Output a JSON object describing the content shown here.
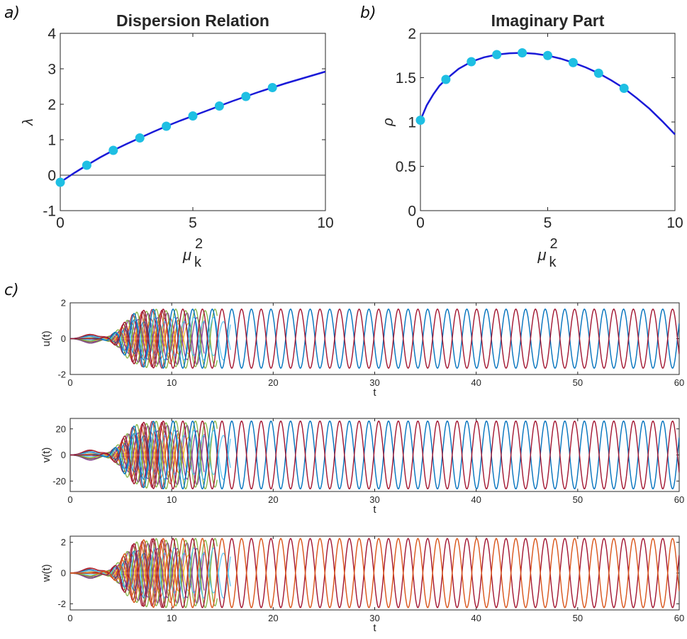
{
  "panel_labels": [
    "a)",
    "b)",
    "c)"
  ],
  "colors": {
    "fit_line": "#1a1ad8",
    "markers": "#1ebfe3",
    "zero_line": "#333333",
    "blue": "#0072BD",
    "red": "#A2142F",
    "orange": "#D95319",
    "yellow": "#EDB120",
    "purple": "#7E2F8E",
    "green": "#77AC30",
    "cyan": "#4DBEEE"
  },
  "chart_data": [
    {
      "id": "a",
      "type": "line",
      "title": "Dispersion Relation",
      "xlabel": "μ",
      "xlabel_superscript": "2",
      "xlabel_subscript": "k",
      "ylabel": "λ",
      "xlim": [
        0,
        10
      ],
      "ylim": [
        -1,
        4
      ],
      "xticks": [
        0,
        5,
        10
      ],
      "yticks": [
        -1,
        0,
        1,
        2,
        3,
        4
      ],
      "hline": 0,
      "markers": {
        "x": [
          0,
          1,
          2,
          3,
          4,
          5,
          6,
          7,
          8
        ],
        "y": [
          -0.2,
          0.28,
          0.7,
          1.05,
          1.38,
          1.67,
          1.95,
          2.22,
          2.47
        ]
      },
      "curve": {
        "x": [
          0,
          0.5,
          1,
          1.5,
          2,
          2.5,
          3,
          3.5,
          4,
          4.5,
          5,
          5.5,
          6,
          6.5,
          7,
          7.5,
          8,
          8.5,
          9,
          9.5,
          10
        ],
        "y": [
          -0.2,
          0.05,
          0.28,
          0.5,
          0.7,
          0.88,
          1.05,
          1.22,
          1.38,
          1.53,
          1.67,
          1.81,
          1.95,
          2.09,
          2.22,
          2.35,
          2.47,
          2.59,
          2.7,
          2.81,
          2.92
        ]
      }
    },
    {
      "id": "b",
      "type": "line",
      "title": "Imaginary Part",
      "xlabel": "μ",
      "xlabel_superscript": "2",
      "xlabel_subscript": "k",
      "ylabel": "ρ",
      "xlim": [
        0,
        10
      ],
      "ylim": [
        0,
        2
      ],
      "xticks": [
        0,
        5,
        10
      ],
      "yticks": [
        0,
        0.5,
        1,
        1.5,
        2
      ],
      "markers": {
        "x": [
          0,
          1,
          2,
          3,
          4,
          5,
          6,
          7,
          8
        ],
        "y": [
          1.02,
          1.48,
          1.68,
          1.76,
          1.78,
          1.75,
          1.67,
          1.55,
          1.38
        ]
      },
      "curve": {
        "x": [
          0,
          0.25,
          0.5,
          0.75,
          1,
          1.5,
          2,
          2.5,
          3,
          3.5,
          4,
          4.5,
          5,
          5.5,
          6,
          6.5,
          7,
          7.5,
          8,
          8.5,
          9,
          9.5,
          10
        ],
        "y": [
          1.02,
          1.19,
          1.31,
          1.41,
          1.48,
          1.6,
          1.68,
          1.73,
          1.76,
          1.775,
          1.78,
          1.77,
          1.75,
          1.715,
          1.67,
          1.615,
          1.55,
          1.47,
          1.38,
          1.27,
          1.15,
          1.01,
          0.86
        ]
      }
    },
    {
      "id": "c1",
      "type": "line",
      "title": "",
      "xlabel": "t",
      "ylabel": "u(t)",
      "xlim": [
        0,
        60
      ],
      "ylim": [
        -2,
        2
      ],
      "xticks": [
        0,
        10,
        20,
        30,
        40,
        50,
        60
      ],
      "yticks": [
        -2,
        0,
        2
      ],
      "amplitude": 1.65,
      "period": 1.93,
      "final_series_colors": [
        "blue",
        "red"
      ]
    },
    {
      "id": "c2",
      "type": "line",
      "title": "",
      "xlabel": "t",
      "ylabel": "v(t)",
      "xlim": [
        0,
        60
      ],
      "ylim": [
        -28,
        28
      ],
      "xticks": [
        0,
        10,
        20,
        30,
        40,
        50,
        60
      ],
      "yticks": [
        -20,
        0,
        20
      ],
      "amplitude": 26,
      "period": 1.93,
      "final_series_colors": [
        "blue",
        "red"
      ]
    },
    {
      "id": "c3",
      "type": "line",
      "title": "",
      "xlabel": "t",
      "ylabel": "w(t)",
      "xlim": [
        0,
        60
      ],
      "ylim": [
        -2.4,
        2.4
      ],
      "xticks": [
        0,
        10,
        20,
        30,
        40,
        50,
        60
      ],
      "yticks": [
        -2,
        0,
        2
      ],
      "amplitude": 2.25,
      "period": 1.93,
      "final_series_colors": [
        "red",
        "orange"
      ]
    }
  ]
}
